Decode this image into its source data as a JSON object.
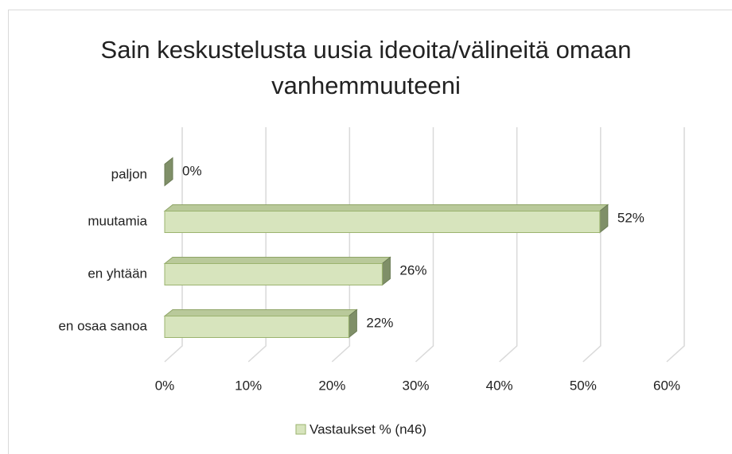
{
  "chart_data": {
    "type": "bar3d_horizontal",
    "title": "Sain keskustelusta uusia ideoita/välineitä omaan vanhemmuuteeni",
    "categories": [
      "paljon",
      "muutamia",
      "en yhtään",
      "en osaa sanoa"
    ],
    "series": [
      {
        "name": "Vastaukset % (n46)",
        "color": "#d7e4bd",
        "values": [
          0,
          52,
          26,
          22
        ],
        "value_labels": [
          "0%",
          "52%",
          "26%",
          "22%"
        ]
      }
    ],
    "xlim": [
      0,
      60
    ],
    "xticks": [
      {
        "value": 0,
        "label": "0%"
      },
      {
        "value": 10,
        "label": "10%"
      },
      {
        "value": 20,
        "label": "20%"
      },
      {
        "value": 30,
        "label": "30%"
      },
      {
        "value": 40,
        "label": "40%"
      },
      {
        "value": 50,
        "label": "50%"
      },
      {
        "value": 60,
        "label": "60%"
      }
    ],
    "grid": true,
    "legend": "bottom"
  }
}
